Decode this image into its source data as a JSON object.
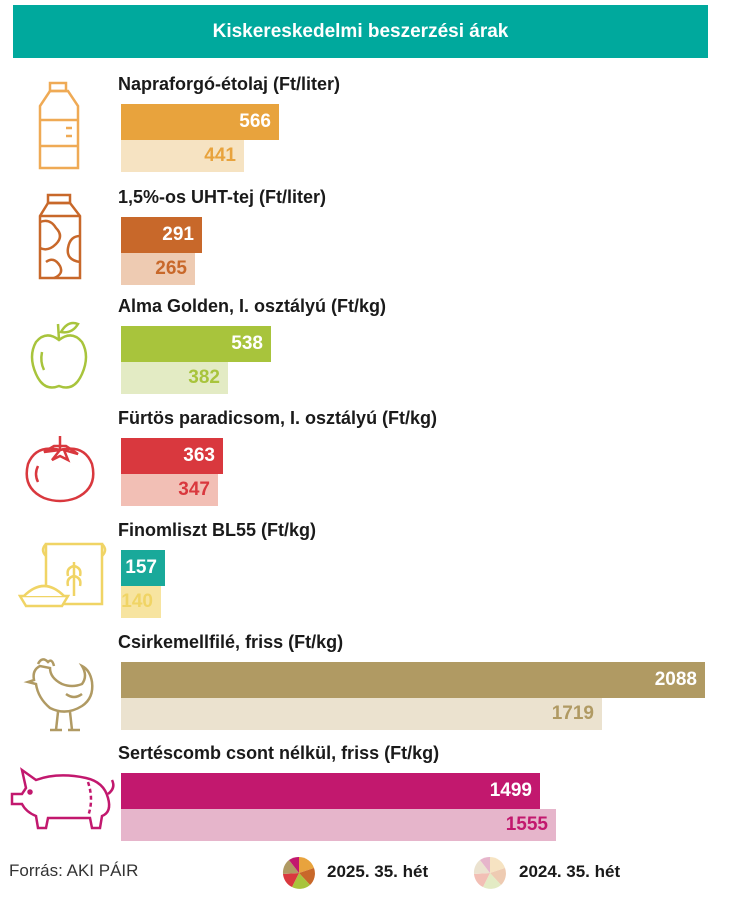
{
  "header": {
    "title": "Kiskereskedelmi beszerzési árak"
  },
  "source": "Forrás: AKI PÁIR",
  "legend": {
    "current": "2025. 35. hét",
    "previous": "2024. 35. hét"
  },
  "chart_data": {
    "type": "bar",
    "orientation": "horizontal",
    "title": "Kiskereskedelmi beszerzési árak",
    "categories": [
      "Napraforgó-étolaj (Ft/liter)",
      "1,5%-os UHT-tej (Ft/liter)",
      "Alma Golden, I. osztályú (Ft/kg)",
      "Fürtös paradicsom, I. osztályú (Ft/kg)",
      "Finomliszt BL55 (Ft/kg)",
      "Csirkemellfilé, friss (Ft/kg)",
      "Sertéscomb csont nélkül, friss (Ft/kg)"
    ],
    "series": [
      {
        "name": "2025. 35. hét",
        "values": [
          566,
          291,
          538,
          363,
          157,
          2088,
          1499
        ]
      },
      {
        "name": "2024. 35. hét",
        "values": [
          441,
          265,
          382,
          347,
          140,
          1719,
          1555
        ]
      }
    ],
    "icons": [
      "oil-bottle-icon",
      "milk-carton-icon",
      "apple-icon",
      "tomato-icon",
      "flour-icon",
      "chicken-icon",
      "pig-icon"
    ],
    "colors": {
      "current": [
        "#e8a33d",
        "#c8682a",
        "#a8c43c",
        "#d9383e",
        "#19a99a",
        "#b09a63",
        "#c2186e"
      ],
      "previous": [
        "#f6e3c2",
        "#eecbb2",
        "#e3ebc4",
        "#f2bfb5",
        "#f7e4a0",
        "#ebe2cf",
        "#e6b5cb"
      ],
      "previous_text": [
        "#e8a33d",
        "#c8682a",
        "#a8c43c",
        "#d9383e",
        "#f0d465",
        "#b09a63",
        "#c2186e"
      ]
    },
    "xlim": [
      0,
      2088
    ]
  }
}
